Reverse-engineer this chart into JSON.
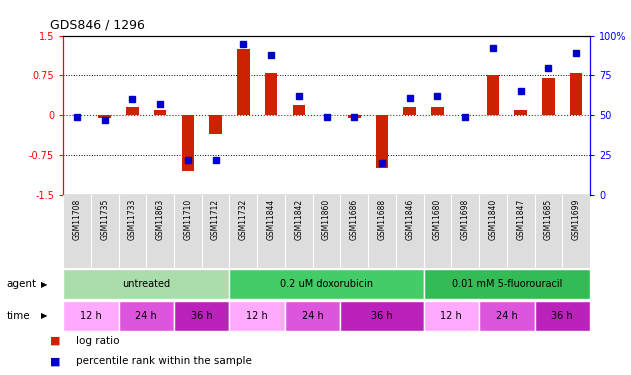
{
  "title": "GDS846 / 1296",
  "samples": [
    "GSM11708",
    "GSM11735",
    "GSM11733",
    "GSM11863",
    "GSM11710",
    "GSM11712",
    "GSM11732",
    "GSM11844",
    "GSM11842",
    "GSM11860",
    "GSM11686",
    "GSM11688",
    "GSM11846",
    "GSM11680",
    "GSM11698",
    "GSM11840",
    "GSM11847",
    "GSM11685",
    "GSM11699"
  ],
  "log_ratio": [
    0.0,
    -0.05,
    0.15,
    0.1,
    -1.05,
    -0.35,
    1.25,
    0.8,
    0.2,
    0.0,
    -0.05,
    -1.0,
    0.15,
    0.15,
    0.0,
    0.75,
    0.1,
    0.7,
    0.8
  ],
  "percentile_rank": [
    49,
    47,
    60,
    57,
    22,
    22,
    95,
    88,
    62,
    49,
    49,
    20,
    61,
    62,
    49,
    92,
    65,
    80,
    89
  ],
  "agents": [
    {
      "label": "untreated",
      "color": "#aaddaa",
      "start": 0,
      "end": 6
    },
    {
      "label": "0.2 uM doxorubicin",
      "color": "#44cc66",
      "start": 6,
      "end": 13
    },
    {
      "label": "0.01 mM 5-fluorouracil",
      "color": "#33bb55",
      "start": 13,
      "end": 19
    }
  ],
  "times": [
    {
      "label": "12 h",
      "color": "#ffaaff",
      "start": 0,
      "end": 2
    },
    {
      "label": "24 h",
      "color": "#dd55dd",
      "start": 2,
      "end": 4
    },
    {
      "label": "36 h",
      "color": "#bb22bb",
      "start": 4,
      "end": 6
    },
    {
      "label": "12 h",
      "color": "#ffaaff",
      "start": 6,
      "end": 8
    },
    {
      "label": "24 h",
      "color": "#dd55dd",
      "start": 8,
      "end": 10
    },
    {
      "label": "36 h",
      "color": "#bb22bb",
      "start": 10,
      "end": 13
    },
    {
      "label": "12 h",
      "color": "#ffaaff",
      "start": 13,
      "end": 15
    },
    {
      "label": "24 h",
      "color": "#dd55dd",
      "start": 15,
      "end": 17
    },
    {
      "label": "36 h",
      "color": "#bb22bb",
      "start": 17,
      "end": 19
    }
  ],
  "ylim_left": [
    -1.5,
    1.5
  ],
  "ylim_right": [
    0,
    100
  ],
  "yticks_left": [
    -1.5,
    -0.75,
    0.0,
    0.75,
    1.5
  ],
  "yticks_right": [
    0,
    25,
    50,
    75,
    100
  ],
  "bar_color": "#cc2200",
  "dot_color": "#0000cc",
  "hline_color": "#cc0000",
  "legend_bar_label": "log ratio",
  "legend_dot_label": "percentile rank within the sample"
}
